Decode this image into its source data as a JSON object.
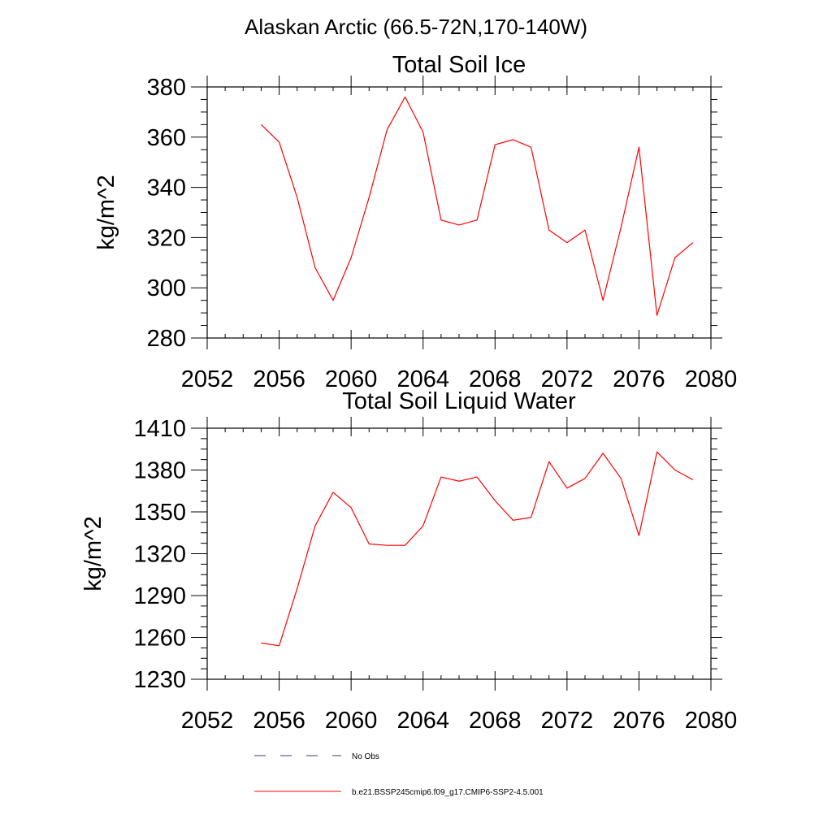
{
  "figure": {
    "region_title": "Alaskan Arctic (66.5-72N,170-140W)"
  },
  "chart_data": [
    {
      "type": "line",
      "title": "Total Soil Ice",
      "xlabel": "",
      "ylabel": "kg/m^2",
      "xlim": [
        2052,
        2080
      ],
      "ylim": [
        280,
        380
      ],
      "xticks": [
        2052,
        2056,
        2060,
        2064,
        2068,
        2072,
        2076,
        2080
      ],
      "yticks": [
        280,
        300,
        320,
        340,
        360,
        380
      ],
      "grid": false,
      "series": [
        {
          "name": "b.e21.BSSP245cmip6.f09_g17.CMIP6-SSP2-4.5.001",
          "color": "#ff0000",
          "x": [
            2055,
            2056,
            2057,
            2058,
            2059,
            2060,
            2061,
            2062,
            2063,
            2064,
            2065,
            2066,
            2067,
            2068,
            2069,
            2070,
            2071,
            2072,
            2073,
            2074,
            2075,
            2076,
            2077,
            2078,
            2079
          ],
          "y": [
            365,
            358,
            336,
            308,
            295,
            312,
            336,
            363,
            376,
            362,
            327,
            325,
            327,
            357,
            359,
            356,
            323,
            318,
            323,
            295,
            324,
            356,
            289,
            312,
            318
          ]
        }
      ]
    },
    {
      "type": "line",
      "title": "Total Soil Liquid Water",
      "xlabel": "",
      "ylabel": "kg/m^2",
      "xlim": [
        2052,
        2080
      ],
      "ylim": [
        1230,
        1410
      ],
      "xticks": [
        2052,
        2056,
        2060,
        2064,
        2068,
        2072,
        2076,
        2080
      ],
      "yticks": [
        1230,
        1260,
        1290,
        1320,
        1350,
        1380,
        1410
      ],
      "grid": false,
      "series": [
        {
          "name": "b.e21.BSSP245cmip6.f09_g17.CMIP6-SSP2-4.5.001",
          "color": "#ff0000",
          "x": [
            2055,
            2056,
            2057,
            2058,
            2059,
            2060,
            2061,
            2062,
            2063,
            2064,
            2065,
            2066,
            2067,
            2068,
            2069,
            2070,
            2071,
            2072,
            2073,
            2074,
            2075,
            2076,
            2077,
            2078,
            2079
          ],
          "y": [
            1256,
            1254,
            1295,
            1340,
            1364,
            1353,
            1327,
            1326,
            1326,
            1340,
            1375,
            1372,
            1375,
            1358,
            1344,
            1346,
            1386,
            1367,
            1374,
            1392,
            1374,
            1333,
            1393,
            1380,
            1373
          ]
        }
      ]
    }
  ],
  "legend": {
    "items": [
      {
        "label": "No Obs",
        "color": "#3a3a80",
        "dash": "dashed"
      },
      {
        "label": "b.e21.BSSP245cmip6.f09_g17.CMIP6-SSP2-4.5.001",
        "color": "#ff0000",
        "dash": "solid"
      }
    ]
  }
}
